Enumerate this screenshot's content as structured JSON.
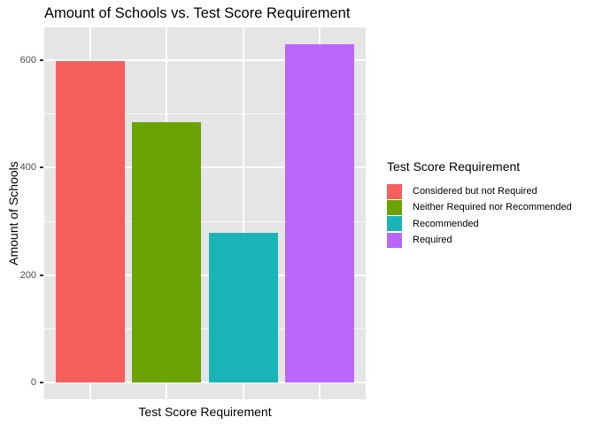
{
  "chart_data": {
    "type": "bar",
    "title": "Amount of Schools vs. Test Score Requirement",
    "xlabel": "Test Score Requirement",
    "ylabel": "Amount of Schools",
    "categories": [
      "Considered but not Required",
      "Neither Required nor Recommended",
      "Recommended",
      "Required"
    ],
    "values": [
      598,
      485,
      278,
      630
    ],
    "colors": [
      "#F45F5C",
      "#6BA304",
      "#1AB4B8",
      "#BB66FB"
    ],
    "ylim": [
      0,
      661
    ],
    "yticks": [
      "0",
      "200",
      "400",
      "600"
    ],
    "ytick_values": [
      0,
      200,
      400,
      600
    ],
    "ytick_minor_values": [
      100,
      300,
      500
    ],
    "grid": true,
    "legend": {
      "title": "Test Score Requirement",
      "position": "right",
      "entries": [
        "Considered but not Required",
        "Neither Required nor Recommended",
        "Recommended",
        "Required"
      ]
    },
    "style": {
      "background": "#FFFFFF",
      "panel_background": "#E5E5E5",
      "gridline_color": "#FFFFFF",
      "tick_label_color": "#4D4D4D",
      "tick_mark_color": "#333333",
      "text_color": "#000000"
    }
  }
}
